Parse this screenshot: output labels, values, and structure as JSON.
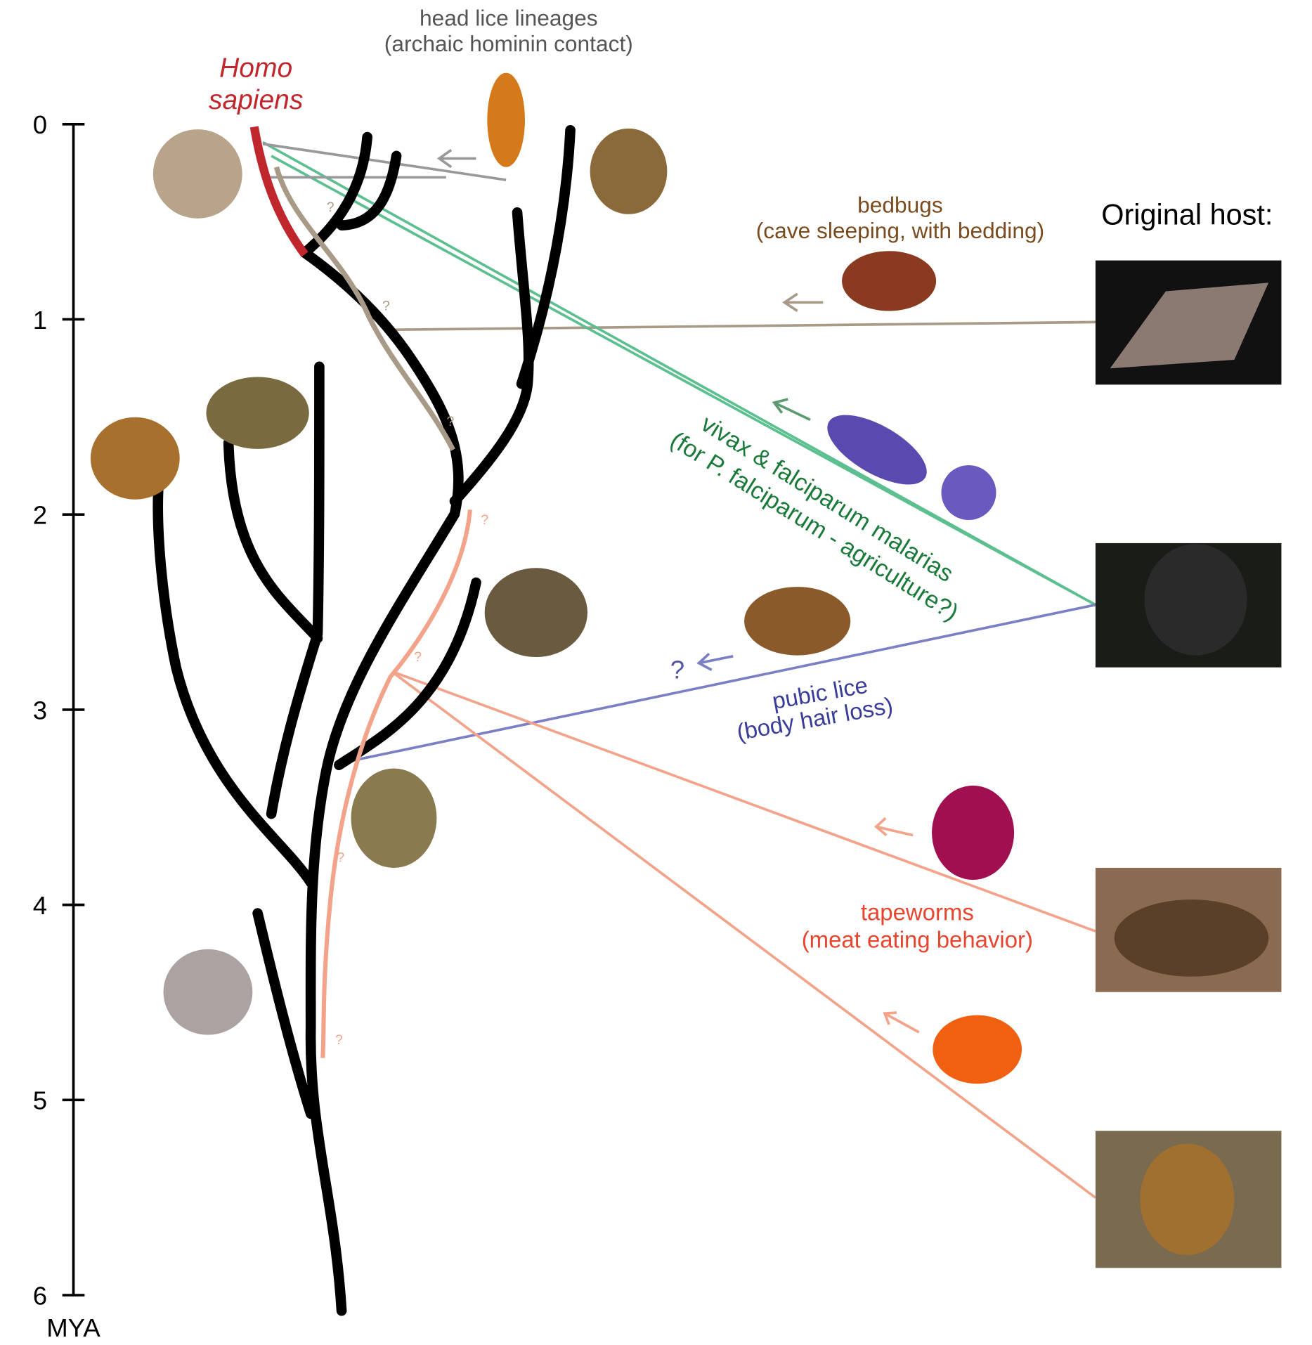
{
  "axis": {
    "label": "MYA",
    "ticks": [
      0,
      1,
      2,
      3,
      4,
      5,
      6
    ]
  },
  "labels": {
    "head_lice": [
      "head lice lineages",
      "(archaic hominin contact)"
    ],
    "homo_sapiens": [
      "Homo",
      "sapiens"
    ],
    "bedbugs": [
      "bedbugs",
      "(cave sleeping, with bedding)"
    ],
    "original_host": "Original host:",
    "malaria": [
      "vivax & falciparum malarias",
      "(for P. falciparum - agriculture?)"
    ],
    "pubic_lice": [
      "?",
      "pubic lice",
      "(body hair loss)"
    ],
    "tapeworms": [
      "tapeworms",
      "(meat eating behavior)"
    ]
  },
  "question_marks": [
    "?",
    "?",
    "?",
    "?",
    "?",
    "?",
    "?"
  ]
}
